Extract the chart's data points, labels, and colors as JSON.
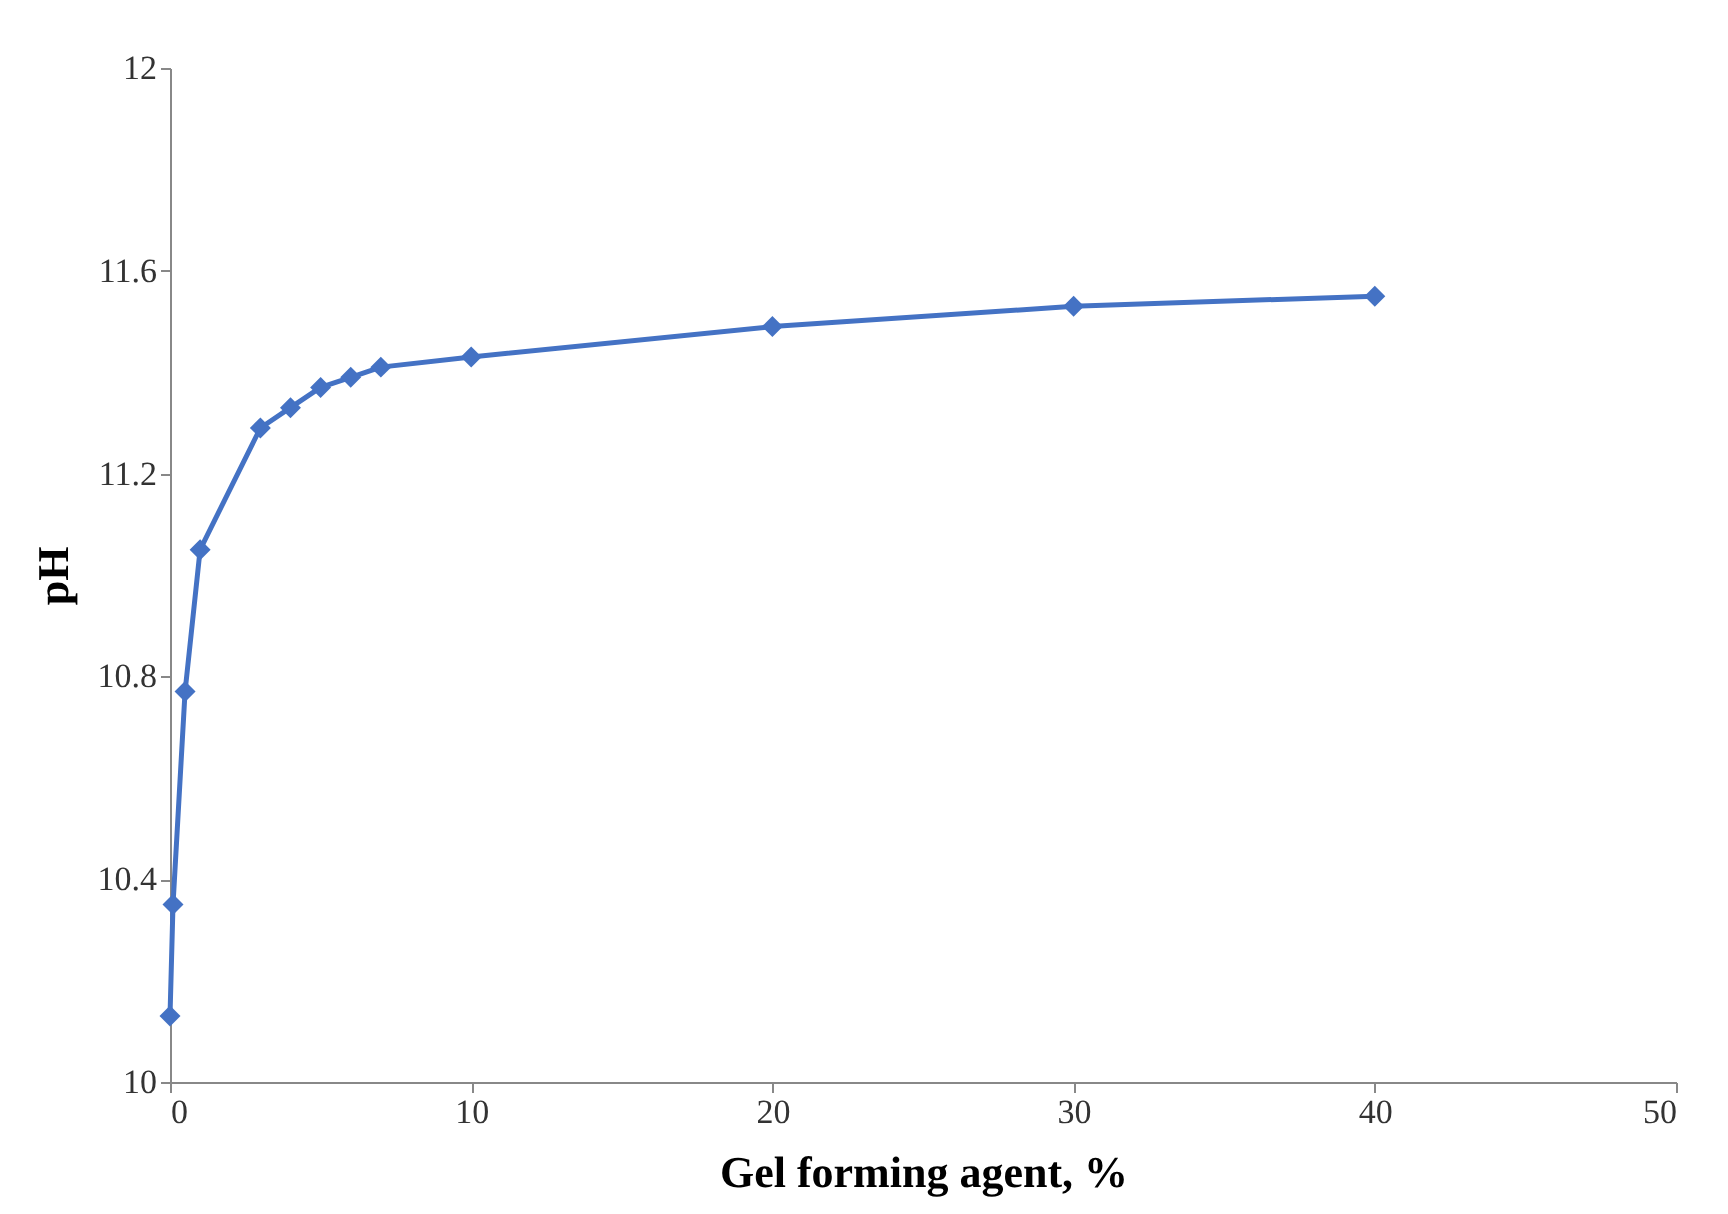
{
  "chart_data": {
    "type": "line",
    "xlabel": "Gel forming agent, %",
    "ylabel": "pH",
    "x": [
      0,
      0.1,
      0.5,
      1,
      3,
      4,
      5,
      6,
      7,
      10,
      20,
      30,
      40
    ],
    "series": [
      {
        "color": "#4472c4",
        "values": [
          10.13,
          10.35,
          10.77,
          11.05,
          11.29,
          11.33,
          11.37,
          11.39,
          11.41,
          11.43,
          11.49,
          11.53,
          11.55
        ]
      }
    ],
    "xlim": [
      0,
      50
    ],
    "xticks": [
      0,
      10,
      20,
      30,
      40,
      50
    ],
    "ylim": [
      10,
      12
    ],
    "yticks": [
      10,
      10.4,
      10.8,
      11.2,
      11.6,
      12
    ],
    "marker": "diamond",
    "line_style": "solid",
    "grid": false,
    "legend": false
  }
}
